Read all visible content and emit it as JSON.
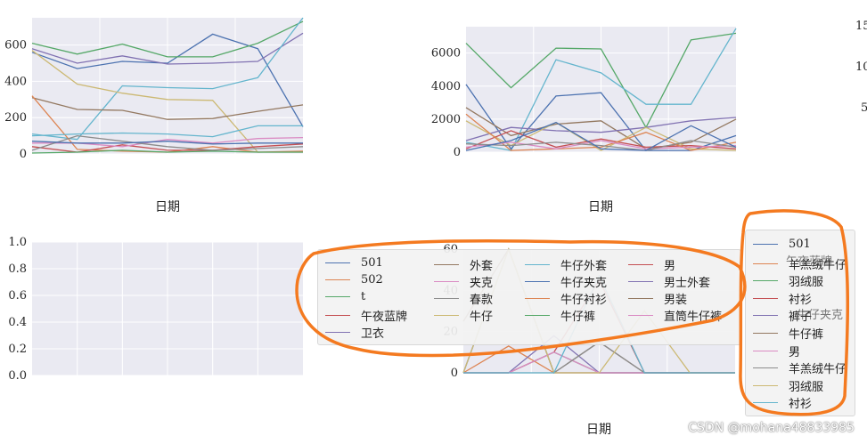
{
  "chart_data": [
    {
      "type": "line",
      "panel": "top-left",
      "xlabel": "日期",
      "ylim": [
        0,
        750
      ],
      "yticks": [
        0,
        200,
        400,
        600
      ],
      "x": [
        0,
        1,
        2,
        3,
        4,
        5,
        6
      ],
      "series": [
        {
          "color": "#4C72B0",
          "values": [
            560,
            470,
            510,
            500,
            660,
            580,
            150
          ]
        },
        {
          "color": "#55A868",
          "values": [
            610,
            550,
            605,
            535,
            535,
            610,
            730
          ]
        },
        {
          "color": "#8172B2",
          "values": [
            580,
            500,
            540,
            495,
            500,
            510,
            665
          ]
        },
        {
          "color": "#64B5CD",
          "values": [
            110,
            80,
            375,
            365,
            360,
            420,
            750
          ]
        },
        {
          "color": "#CCB974",
          "values": [
            570,
            385,
            335,
            300,
            295,
            10,
            10
          ]
        },
        {
          "color": "#937860",
          "values": [
            310,
            245,
            240,
            190,
            195,
            235,
            270
          ]
        },
        {
          "color": "#DD8452",
          "values": [
            320,
            25,
            15,
            10,
            40,
            10,
            15
          ]
        },
        {
          "color": "#C44E52",
          "values": [
            40,
            10,
            50,
            20,
            20,
            40,
            55
          ]
        },
        {
          "color": "#DA8BC3",
          "values": [
            60,
            60,
            40,
            80,
            60,
            85,
            90
          ]
        },
        {
          "color": "#8C8C8C",
          "values": [
            20,
            100,
            70,
            40,
            20,
            30,
            40
          ]
        },
        {
          "color": "#4C72B0",
          "values": [
            70,
            60,
            60,
            70,
            55,
            60,
            60
          ]
        },
        {
          "color": "#64B5CD",
          "values": [
            100,
            110,
            115,
            110,
            95,
            155,
            155
          ]
        },
        {
          "color": "#55A868",
          "values": [
            5,
            10,
            20,
            10,
            15,
            10,
            10
          ]
        }
      ]
    },
    {
      "type": "line",
      "panel": "top-right",
      "xlabel": "日期",
      "ylim": [
        0,
        7600
      ],
      "yticks": [
        0,
        2000,
        4000,
        6000
      ],
      "x": [
        0,
        1,
        2,
        3,
        4,
        5,
        6
      ],
      "series": [
        {
          "color": "#55A868",
          "values": [
            6600,
            3900,
            6300,
            6250,
            1500,
            6800,
            7200
          ]
        },
        {
          "color": "#64B5CD",
          "values": [
            600,
            100,
            5600,
            4800,
            2900,
            2900,
            7500
          ]
        },
        {
          "color": "#4C72B0",
          "values": [
            4100,
            200,
            3400,
            3600,
            100,
            100,
            1000
          ]
        },
        {
          "color": "#937860",
          "values": [
            2700,
            1000,
            1700,
            1900,
            200,
            600,
            2000
          ]
        },
        {
          "color": "#8172B2",
          "values": [
            700,
            1500,
            1300,
            1200,
            1500,
            1900,
            2100
          ]
        },
        {
          "color": "#CCB974",
          "values": [
            1900,
            400,
            1800,
            100,
            1500,
            200,
            100
          ]
        },
        {
          "color": "#C44E52",
          "values": [
            200,
            1300,
            300,
            800,
            300,
            400,
            200
          ]
        },
        {
          "color": "#DD8452",
          "values": [
            2300,
            100,
            200,
            300,
            1200,
            100,
            600
          ]
        },
        {
          "color": "#DA8BC3",
          "values": [
            300,
            600,
            200,
            700,
            200,
            300,
            400
          ]
        },
        {
          "color": "#8C8C8C",
          "values": [
            500,
            400,
            600,
            400,
            100,
            700,
            300
          ]
        },
        {
          "color": "#4C72B0",
          "values": [
            100,
            700,
            1800,
            200,
            100,
            1600,
            300
          ]
        }
      ]
    },
    {
      "type": "line",
      "panel": "bottom-left",
      "ylim": [
        0,
        1
      ],
      "ytick_labels": [
        "0.0",
        "0.2",
        "0.4",
        "0.6",
        "0.8",
        "1.0"
      ],
      "series": []
    },
    {
      "type": "line",
      "panel": "bottom-right",
      "xlabel": "日期",
      "ylim": [
        0,
        60
      ],
      "yticks": [
        0,
        20,
        40,
        60
      ],
      "x": [
        0,
        1,
        2,
        3,
        4,
        5,
        6
      ],
      "series": [
        {
          "color": "#4C72B0",
          "values": [
            0,
            67,
            0,
            0,
            0,
            0,
            0
          ]
        },
        {
          "color": "#DD8452",
          "values": [
            0,
            13,
            0,
            0,
            0,
            0,
            0
          ]
        },
        {
          "color": "#55A868",
          "values": [
            0,
            0,
            10,
            0,
            0,
            0,
            0
          ]
        },
        {
          "color": "#C44E52",
          "values": [
            0,
            0,
            10,
            45,
            0,
            0,
            0
          ]
        },
        {
          "color": "#8172B2",
          "values": [
            0,
            0,
            18,
            0,
            0,
            0,
            0
          ]
        },
        {
          "color": "#937860",
          "values": [
            25,
            67,
            0,
            15,
            0,
            0,
            0
          ]
        },
        {
          "color": "#DA8BC3",
          "values": [
            0,
            0,
            10,
            0,
            0,
            0,
            0
          ]
        },
        {
          "color": "#8C8C8C",
          "values": [
            0,
            0,
            0,
            15,
            0,
            0,
            0
          ]
        },
        {
          "color": "#CCB974",
          "values": [
            0,
            67,
            0,
            0,
            30,
            0,
            0
          ]
        },
        {
          "color": "#64B5CD",
          "values": [
            0,
            0,
            0,
            47,
            0,
            0,
            0
          ]
        }
      ]
    }
  ],
  "legend_main": {
    "columns": [
      [
        {
          "label": "501",
          "color": "#4C72B0"
        },
        {
          "label": "502",
          "color": "#DD8452"
        },
        {
          "label": "t",
          "color": "#55A868"
        },
        {
          "label": "午夜蓝牌",
          "color": "#C44E52"
        },
        {
          "label": "卫衣",
          "color": "#8172B2"
        }
      ],
      [
        {
          "label": "外套",
          "color": "#937860"
        },
        {
          "label": "夹克",
          "color": "#DA8BC3"
        },
        {
          "label": "春款",
          "color": "#8C8C8C"
        },
        {
          "label": "牛仔",
          "color": "#CCB974"
        }
      ],
      [
        {
          "label": "牛仔外套",
          "color": "#64B5CD"
        },
        {
          "label": "牛仔夹克",
          "color": "#4C72B0"
        },
        {
          "label": "牛仔衬衫",
          "color": "#DD8452"
        },
        {
          "label": "牛仔裤",
          "color": "#55A868"
        }
      ],
      [
        {
          "label": "男",
          "color": "#C44E52"
        },
        {
          "label": "男士外套",
          "color": "#8172B2"
        },
        {
          "label": "男装",
          "color": "#937860"
        },
        {
          "label": "直筒牛仔裤",
          "color": "#DA8BC3"
        }
      ]
    ]
  },
  "legend_right": {
    "items": [
      {
        "label": "501",
        "color": "#4C72B0"
      },
      {
        "label": "羊羔绒牛仔",
        "color": "#DD8452"
      },
      {
        "label": "羽绒服",
        "color": "#55A868"
      },
      {
        "label": "衬衫",
        "color": "#C44E52"
      },
      {
        "label": "裤子",
        "color": "#8172B2"
      },
      {
        "label": "牛仔裤",
        "color": "#937860"
      },
      {
        "label": "男",
        "color": "#DA8BC3"
      },
      {
        "label": "羊羔绒牛仔",
        "color": "#8C8C8C"
      },
      {
        "label": "羽绒服",
        "color": "#CCB974"
      },
      {
        "label": "衬衫",
        "color": "#64B5CD"
      }
    ],
    "overlapping_labels": [
      "午夜蓝牌",
      "牛仔夹克"
    ]
  },
  "cut_off_ticks": [
    "15",
    "10",
    "5"
  ],
  "annotations": {
    "ellipse_color": "#F47A20"
  },
  "watermark": "CSDN @mohana48833985"
}
